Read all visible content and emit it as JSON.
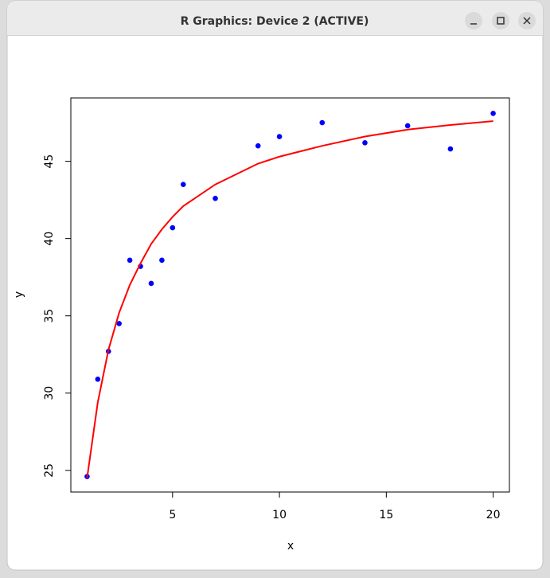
{
  "window": {
    "title": "R Graphics: Device 2 (ACTIVE)"
  },
  "chart_data": {
    "type": "scatter",
    "x_label": "x",
    "y_label": "y",
    "x": [
      1,
      1.5,
      2,
      2.5,
      3,
      3.5,
      4,
      4.5,
      5,
      5.5,
      7,
      9,
      10,
      12,
      14,
      16,
      18,
      20
    ],
    "series": [
      {
        "type": "scatter",
        "color": "#0000ff",
        "values": [
          24.6,
          30.9,
          32.7,
          34.5,
          38.6,
          38.2,
          37.1,
          38.6,
          40.7,
          43.5,
          42.6,
          46.0,
          46.6,
          47.5,
          46.2,
          47.3,
          45.8,
          48.1
        ]
      },
      {
        "type": "line",
        "color": "#ff0000",
        "values": [
          24.5,
          29.4,
          32.8,
          35.2,
          37.0,
          38.4,
          39.65,
          40.6,
          41.4,
          42.1,
          43.5,
          44.85,
          45.3,
          46.0,
          46.6,
          47.05,
          47.35,
          47.6
        ]
      }
    ],
    "xlim": [
      0.24,
      20.76
    ],
    "ylim": [
      23.6,
      49.1
    ],
    "xticks": [
      5,
      10,
      15,
      20
    ],
    "yticks": [
      25,
      30,
      35,
      40,
      45
    ]
  }
}
